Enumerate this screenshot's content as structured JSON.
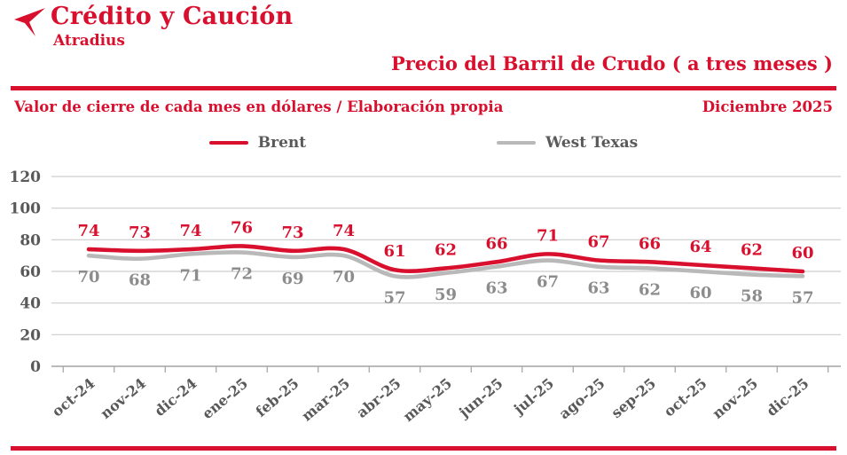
{
  "header": {
    "brand": "Crédito y Caución",
    "brand_sub": "Atradius",
    "title": "Precio del Barril de Crudo ( a tres meses )"
  },
  "subtitle": {
    "left": "Valor de cierre de cada mes en dólares / Elaboración propia",
    "right": "Diciembre  2025"
  },
  "icons": {
    "brand_logo": "atradius-bird-arrow"
  },
  "colors": {
    "red": "#d8102e",
    "gray_line": "#b9b9b9",
    "gray_label": "#8c8c8c",
    "axis_text": "#595959",
    "grid": "#cdcdcd",
    "axis_line": "#a3a3a3",
    "legend_text": "#5a5a5a"
  },
  "chart_data": {
    "type": "line",
    "title": "Precio del Barril de Crudo ( a tres meses )",
    "xlabel": "",
    "ylabel": "",
    "categories": [
      "oct-24",
      "nov-24",
      "dic-24",
      "ene-25",
      "feb-25",
      "mar-25",
      "abr-25",
      "may-25",
      "jun-25",
      "jul-25",
      "ago-25",
      "sep-25",
      "oct-25",
      "nov-25",
      "dic-25"
    ],
    "series": [
      {
        "name": "Brent",
        "color": "#d8102e",
        "label_color": "#d8102e",
        "label_position": "above",
        "values": [
          74,
          73,
          74,
          76,
          73,
          74,
          61,
          62,
          66,
          71,
          67,
          66,
          64,
          62,
          60
        ]
      },
      {
        "name": "West Texas",
        "color": "#b9b9b9",
        "label_color": "#8c8c8c",
        "label_position": "below",
        "values": [
          70,
          68,
          71,
          72,
          69,
          70,
          57,
          59,
          63,
          67,
          63,
          62,
          60,
          58,
          57
        ]
      }
    ],
    "ylim": [
      0,
      120
    ],
    "ytick_step": 20,
    "grid": true,
    "legend_position": "top-center"
  }
}
